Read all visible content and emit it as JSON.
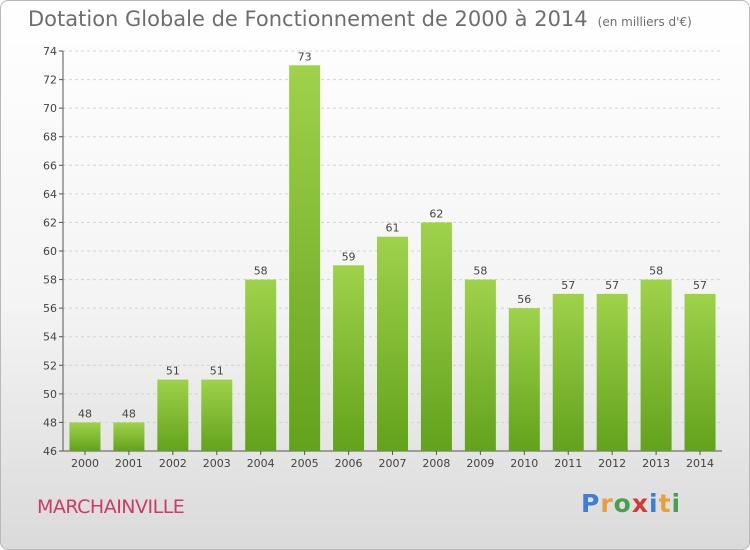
{
  "header": {
    "title": "Dotation Globale de Fonctionnement de 2000 à 2014",
    "unit": "(en milliers d'€)"
  },
  "commune": "MARCHAINVILLE",
  "logo": {
    "letters": [
      {
        "char": "P",
        "color": "#3a7fd1"
      },
      {
        "char": "r",
        "color": "#e8a13a"
      },
      {
        "char": "o",
        "color": "#4aa04a"
      },
      {
        "char": "x",
        "color": "#d13a3a"
      },
      {
        "char": "i",
        "color": "#3a7fd1"
      },
      {
        "char": "t",
        "color": "#e8a13a"
      },
      {
        "char": "i",
        "color": "#4aa04a"
      }
    ]
  },
  "chart_data": {
    "type": "bar",
    "title": "Dotation Globale de Fonctionnement de 2000 à 2014",
    "categories": [
      "2000",
      "2001",
      "2002",
      "2003",
      "2004",
      "2005",
      "2006",
      "2007",
      "2008",
      "2009",
      "2010",
      "2011",
      "2012",
      "2013",
      "2014"
    ],
    "values": [
      48,
      48,
      51,
      51,
      58,
      73,
      59,
      61,
      62,
      58,
      56,
      57,
      57,
      58,
      57
    ],
    "ylim": [
      46,
      74
    ],
    "yticks": [
      46,
      48,
      50,
      52,
      54,
      56,
      58,
      60,
      62,
      64,
      66,
      68,
      70,
      72,
      74
    ],
    "grid": true,
    "bar_color_top": "#9fd24a",
    "bar_color_bottom": "#63a21c"
  }
}
